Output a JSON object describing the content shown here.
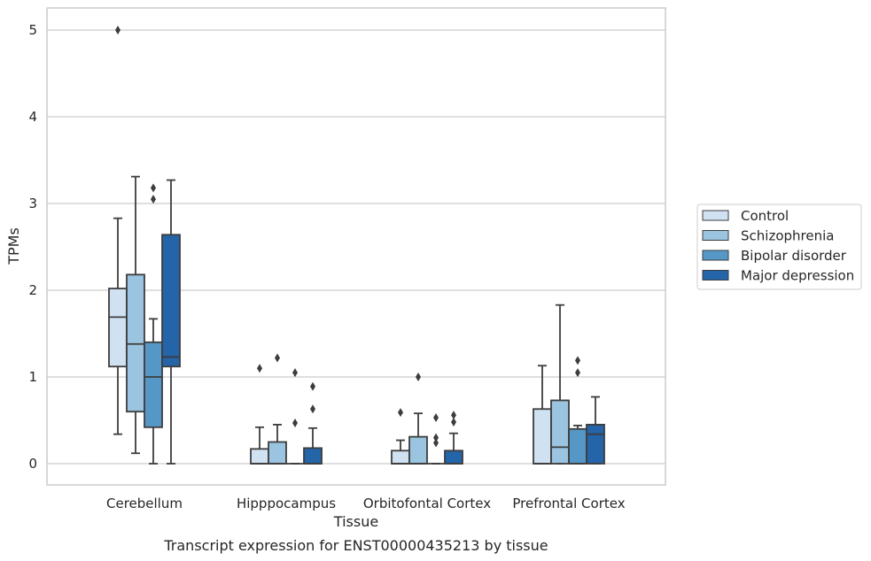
{
  "chart_data": {
    "type": "boxplot",
    "caption": "Transcript expression for ENST00000435213 by tissue",
    "xlabel": "Tissue",
    "ylabel": "TPMs",
    "ylim": [
      -0.25,
      5.25
    ],
    "yticks": [
      0,
      1,
      2,
      3,
      4,
      5
    ],
    "grid": true,
    "legend_position": "right",
    "categories": [
      "Cerebellum",
      "Hipppocampus",
      "Orbitofontal Cortex",
      "Prefrontal Cortex"
    ],
    "series": [
      {
        "name": "Control",
        "color": "#d0e1f2",
        "boxes": [
          {
            "whislo": 0.34,
            "q1": 1.12,
            "med": 1.69,
            "q3": 2.02,
            "whishi": 2.83,
            "fliers": [
              5.0
            ]
          },
          {
            "whislo": 0.0,
            "q1": 0.0,
            "med": 0.0,
            "q3": 0.17,
            "whishi": 0.42,
            "fliers": [
              1.1
            ]
          },
          {
            "whislo": 0.0,
            "q1": 0.0,
            "med": 0.0,
            "q3": 0.15,
            "whishi": 0.27,
            "fliers": [
              0.59
            ]
          },
          {
            "whislo": 0.0,
            "q1": 0.0,
            "med": 0.0,
            "q3": 0.63,
            "whishi": 1.13,
            "fliers": []
          }
        ]
      },
      {
        "name": "Schizophrenia",
        "color": "#9ac4df",
        "boxes": [
          {
            "whislo": 0.12,
            "q1": 0.6,
            "med": 1.38,
            "q3": 2.18,
            "whishi": 3.31,
            "fliers": []
          },
          {
            "whislo": 0.0,
            "q1": 0.0,
            "med": 0.0,
            "q3": 0.25,
            "whishi": 0.45,
            "fliers": [
              1.22
            ]
          },
          {
            "whislo": 0.0,
            "q1": 0.0,
            "med": 0.0,
            "q3": 0.31,
            "whishi": 0.58,
            "fliers": [
              1.0
            ]
          },
          {
            "whislo": 0.0,
            "q1": 0.0,
            "med": 0.19,
            "q3": 0.73,
            "whishi": 1.83,
            "fliers": []
          }
        ]
      },
      {
        "name": "Bipolar disorder",
        "color": "#5597c6",
        "boxes": [
          {
            "whislo": 0.0,
            "q1": 0.42,
            "med": 1.0,
            "q3": 1.4,
            "whishi": 1.67,
            "fliers": [
              3.05,
              3.18
            ]
          },
          {
            "whislo": 0.0,
            "q1": 0.0,
            "med": 0.0,
            "q3": 0.0,
            "whishi": 0.0,
            "fliers": [
              0.47,
              1.05
            ]
          },
          {
            "whislo": 0.0,
            "q1": 0.0,
            "med": 0.0,
            "q3": 0.0,
            "whishi": 0.0,
            "fliers": [
              0.24,
              0.3,
              0.53
            ]
          },
          {
            "whislo": 0.0,
            "q1": 0.0,
            "med": 0.0,
            "q3": 0.4,
            "whishi": 0.44,
            "fliers": [
              1.05,
              1.19
            ]
          }
        ]
      },
      {
        "name": "Major depression",
        "color": "#2464a8",
        "boxes": [
          {
            "whislo": 0.0,
            "q1": 1.12,
            "med": 1.23,
            "q3": 2.64,
            "whishi": 3.27,
            "fliers": []
          },
          {
            "whislo": 0.0,
            "q1": 0.0,
            "med": 0.0,
            "q3": 0.18,
            "whishi": 0.41,
            "fliers": [
              0.63,
              0.89
            ]
          },
          {
            "whislo": 0.0,
            "q1": 0.0,
            "med": 0.0,
            "q3": 0.15,
            "whishi": 0.35,
            "fliers": [
              0.48,
              0.56
            ]
          },
          {
            "whislo": 0.0,
            "q1": 0.0,
            "med": 0.34,
            "q3": 0.45,
            "whishi": 0.77,
            "fliers": []
          }
        ]
      }
    ]
  }
}
